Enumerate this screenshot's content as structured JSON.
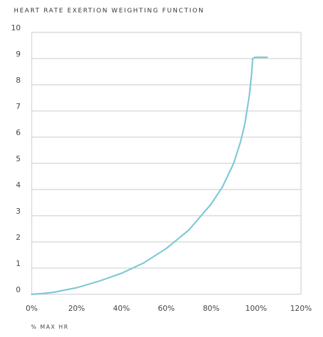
{
  "chart_data": {
    "type": "line",
    "title": "HEART RATE EXERTION WEIGHTING FUNCTION",
    "xlabel": "% MAX HR",
    "ylabel": "",
    "xlim": [
      0,
      120
    ],
    "ylim": [
      0,
      10
    ],
    "x_ticks": [
      "0%",
      "20%",
      "40%",
      "60%",
      "80%",
      "100%",
      "120%"
    ],
    "y_ticks": [
      "0",
      "1",
      "2",
      "3",
      "4",
      "5",
      "6",
      "7",
      "8",
      "9",
      "10"
    ],
    "grid": true,
    "series": [
      {
        "color": "#7ec8d8",
        "x": [
          0,
          5,
          10,
          20,
          30,
          40,
          50,
          60,
          70,
          80,
          85,
          90,
          93,
          95,
          97,
          98,
          98.5,
          99.5,
          101,
          103,
          105
        ],
        "y": [
          0,
          0.03,
          0.08,
          0.25,
          0.5,
          0.8,
          1.2,
          1.75,
          2.45,
          3.45,
          4.1,
          5.0,
          5.8,
          6.5,
          7.6,
          8.4,
          9.0,
          9.05,
          9.05,
          9.05,
          9.05
        ]
      }
    ]
  }
}
